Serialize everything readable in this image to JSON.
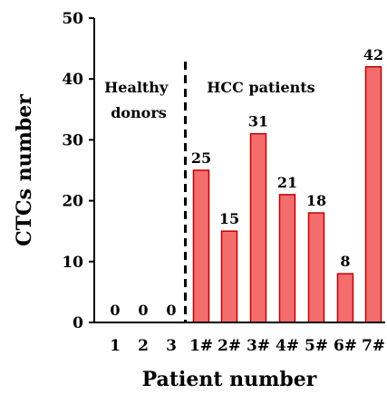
{
  "chart_data": {
    "type": "bar",
    "ylabel": "CTCs number",
    "xlabel": "Patient number",
    "ylim": [
      0,
      50
    ],
    "yticks": [
      "0",
      "10",
      "20",
      "30",
      "40",
      "50"
    ],
    "categories": [
      "1",
      "2",
      "3",
      "1#",
      "2#",
      "3#",
      "4#",
      "5#",
      "6#",
      "7#"
    ],
    "values": [
      0,
      0,
      0,
      25,
      15,
      31,
      21,
      18,
      8,
      42
    ],
    "data_labels": [
      "0",
      "0",
      "0",
      "25",
      "15",
      "31",
      "21",
      "18",
      "8",
      "42"
    ],
    "groups": [
      {
        "label_lines": [
          "Healthy",
          "donors"
        ]
      },
      {
        "label_lines": [
          "HCC patients"
        ]
      }
    ],
    "divider_after_index": 2,
    "grid": false,
    "colors": {
      "bar_fill": "#f46d6d",
      "bar_stroke": "#c00000",
      "axis": "#000000"
    }
  }
}
